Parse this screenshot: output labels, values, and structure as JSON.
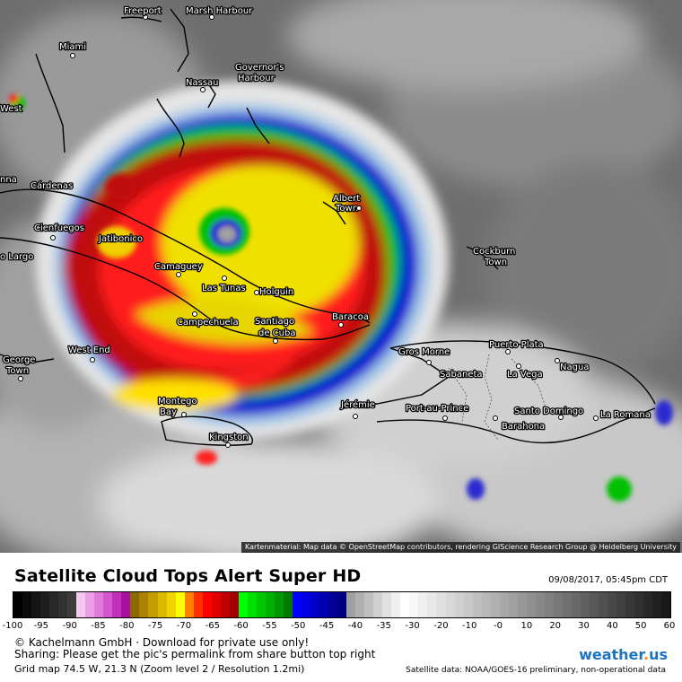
{
  "map": {
    "attribution": "Kartenmaterial: Map data © OpenStreetMap contributors, rendering GIScience Research Group @ Heidelberg University",
    "labels": {
      "freeport": "Freeport",
      "marsh_harbour": "Marsh Harbour",
      "miami": "Miami",
      "governors_harbour_1": "Governor's",
      "governors_harbour_2": "Harbour",
      "nassau": "Nassau",
      "west": "West",
      "nna": "nna",
      "cardenas": "Cárdenas",
      "albert_town_1": "Albert",
      "albert_town_2": "Town",
      "cienfuegos": "Cienfuegos",
      "jatibonico": "Jatibonico",
      "cockburn_town_1": "Cockburn",
      "cockburn_town_2": "Town",
      "o_largo": "o Largo",
      "camaguey": "Camaguey",
      "las_tunas": "Las Tunas",
      "holguin": "Holguin",
      "campechuela": "Campechuela",
      "santiago_1": "Santiago",
      "santiago_2": "de Cuba",
      "baracoa": "Baracoa",
      "puerto_plata": "Puerto Plata",
      "west_end": "West End",
      "gros_morne": "Gros Morne",
      "george_town_1": "George",
      "george_town_2": "Town",
      "sabaneta": "Sabaneta",
      "la_vega": "La Vega",
      "nagua": "Nagua",
      "montego_bay_1": "Montego",
      "montego_bay_2": "Bay",
      "jeremie": "Jérémie",
      "port_au_prince": "Port-au-Prince",
      "santo_domingo": "Santo Domingo",
      "la_romana": "La Romana",
      "barahona": "Barahona",
      "kingston": "Kingston"
    }
  },
  "header": {
    "title": "Satellite Cloud Tops Alert Super HD",
    "datetime": "09/08/2017, 05:45pm CDT"
  },
  "colorbar": {
    "ticks": [
      "-100",
      "-95",
      "-90",
      "-85",
      "-80",
      "-75",
      "-70",
      "-65",
      "-60",
      "-55",
      "-50",
      "-45",
      "-40",
      "-35",
      "-30",
      "-20",
      "-10",
      "-0",
      "10",
      "20",
      "30",
      "40",
      "50",
      "60"
    ],
    "colors": [
      "#000000",
      "#0a0a0a",
      "#141414",
      "#1e1e1e",
      "#282828",
      "#323232",
      "#3c3c3c",
      "#f4c8f0",
      "#ec9fe6",
      "#e07ad9",
      "#d455cc",
      "#c030b8",
      "#a810a0",
      "#8a6a00",
      "#a88200",
      "#c29c00",
      "#dcb800",
      "#f0d400",
      "#ffff00",
      "#ff7f00",
      "#ff3000",
      "#ff0000",
      "#e00000",
      "#c00000",
      "#a00000",
      "#00ff00",
      "#00e000",
      "#00c800",
      "#00b000",
      "#009800",
      "#007a00",
      "#0000ff",
      "#0000e0",
      "#0000c8",
      "#0000b0",
      "#000098",
      "#000080",
      "#a0a0a0",
      "#b0b0b0",
      "#c0c0c0",
      "#d0d0d0",
      "#e0e0e0",
      "#f0f0f0",
      "#ffffff",
      "#f8f8f8",
      "#f0f0f0",
      "#e8e8e8",
      "#e0e0e0",
      "#d8d8d8",
      "#d0d0d0",
      "#c8c8c8",
      "#c0c0c0",
      "#b8b8b8",
      "#b0b0b0",
      "#a8a8a8",
      "#a0a0a0",
      "#989898",
      "#909090",
      "#888888",
      "#808080",
      "#787878",
      "#707070",
      "#686868",
      "#606060",
      "#585858",
      "#505050",
      "#484848",
      "#404040",
      "#383838",
      "#303030",
      "#282828",
      "#202020",
      "#181818"
    ]
  },
  "footer": {
    "copyright": "© Kachelmann GmbH · Download for private use only!",
    "sharing": "Sharing: Please get the pic's permalink from share button top right",
    "grid_info": "Grid map 74.5 W, 21.3 N (Zoom level 2 / Resolution 1.2mi)",
    "logo_text": "weather",
    "logo_dot": ".",
    "logo_suffix": "us",
    "satellite_data": "Satellite data: NOAA/GOES-16 preliminary, non-operational data"
  }
}
